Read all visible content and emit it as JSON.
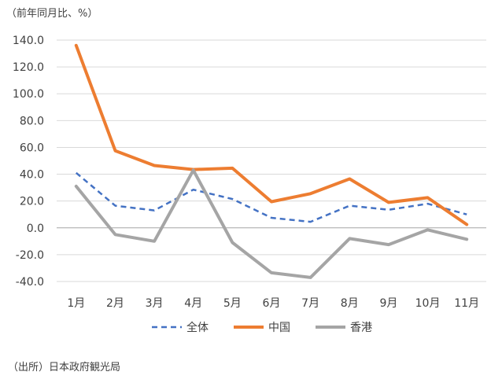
{
  "unit_label": "（前年同月比、%）",
  "source": "（出所）日本政府観光局",
  "chart_data": {
    "type": "line",
    "title": "",
    "xlabel": "",
    "ylabel": "（前年同月比、%）",
    "categories": [
      "1月",
      "2月",
      "3月",
      "4月",
      "5月",
      "6月",
      "7月",
      "8月",
      "9月",
      "10月",
      "11月"
    ],
    "ylim": [
      -40,
      140
    ],
    "yticks": [
      -40,
      -20,
      0,
      20,
      40,
      60,
      80,
      100,
      120,
      140
    ],
    "ytick_labels": [
      "-40.0",
      "-20.0",
      "0.0",
      "20.0",
      "40.0",
      "60.0",
      "80.0",
      "100.0",
      "120.0",
      "140.0"
    ],
    "grid": true,
    "legend_position": "bottom",
    "series": [
      {
        "name": "全体",
        "color": "#4472C4",
        "style": "dashed",
        "values": [
          41,
          16.5,
          13,
          28.5,
          21.5,
          7.5,
          4.5,
          16.5,
          13.5,
          18,
          10
        ]
      },
      {
        "name": "中国",
        "color": "#ED7D31",
        "style": "solid",
        "values": [
          136,
          57.5,
          46.5,
          43.5,
          44.5,
          19.5,
          25.5,
          36.5,
          19,
          22.5,
          2.5
        ]
      },
      {
        "name": "香港",
        "color": "#A5A5A5",
        "style": "solid",
        "values": [
          31,
          -5,
          -10,
          43,
          -11,
          -33.5,
          -37,
          -8,
          -12.5,
          -1.5,
          -8.5
        ]
      }
    ]
  }
}
